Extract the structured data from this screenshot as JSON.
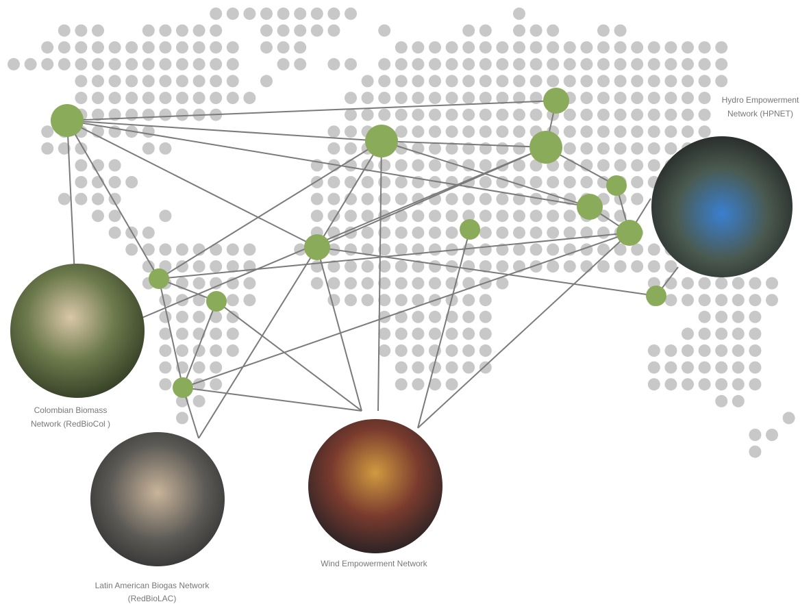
{
  "labels": [
    {
      "lines": [
        "Hydro Empowerment",
        "Network (HPNET)"
      ]
    },
    {
      "lines": [
        "Colombian Biomass",
        "Network (RedBioCol )"
      ]
    },
    {
      "lines": [
        "Wind Empowerment Network"
      ]
    },
    {
      "lines": [
        "Latin American Biogas Network",
        "(RedBioLAC)"
      ]
    }
  ]
}
